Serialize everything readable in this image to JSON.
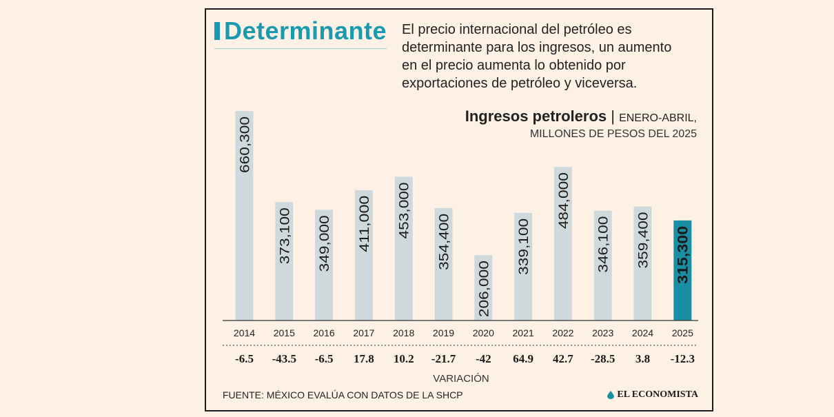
{
  "header": {
    "title": "Determinante",
    "intro_lines": [
      "El precio internacional del petróleo es",
      "determinante para los ingresos, un aumento",
      "en el precio aumenta lo obtenido por",
      "exportaciones de petróleo y viceversa."
    ]
  },
  "chart_data": {
    "type": "bar",
    "title": "Ingresos petroleros",
    "subtitle_line1": "ENERO-ABRIL,",
    "subtitle_line2": "MILLONES DE PESOS DEL 2025",
    "categories": [
      "2014",
      "2015",
      "2016",
      "2017",
      "2018",
      "2019",
      "2020",
      "2021",
      "2022",
      "2023",
      "2024",
      "2025"
    ],
    "values": [
      660300,
      373100,
      349000,
      411000,
      453000,
      354400,
      206000,
      339100,
      484000,
      346100,
      359400,
      315300
    ],
    "value_labels": [
      "660,300",
      "373,100",
      "349,000",
      "411,000",
      "453,000",
      "354,400",
      "206,000",
      "339,100",
      "484,000",
      "346,100",
      "359,400",
      "315,300"
    ],
    "variation_label": "VARIACIÓN",
    "variation": [
      "-6.5",
      "-43.5",
      "-6.5",
      "17.8",
      "10.2",
      "-21.7",
      "-42",
      "64.9",
      "42.7",
      "-28.5",
      "3.8",
      "-12.3"
    ],
    "highlight_index": 11,
    "colors": {
      "bar": "#cfd9db",
      "highlight": "#1a8ea2",
      "axis": "#333333"
    },
    "ylim": [
      0,
      660300
    ]
  },
  "footer": {
    "source": "FUENTE: MÉXICO EVALÚA CON DATOS DE LA SHCP",
    "brand": "EL ECONOMISTA"
  }
}
